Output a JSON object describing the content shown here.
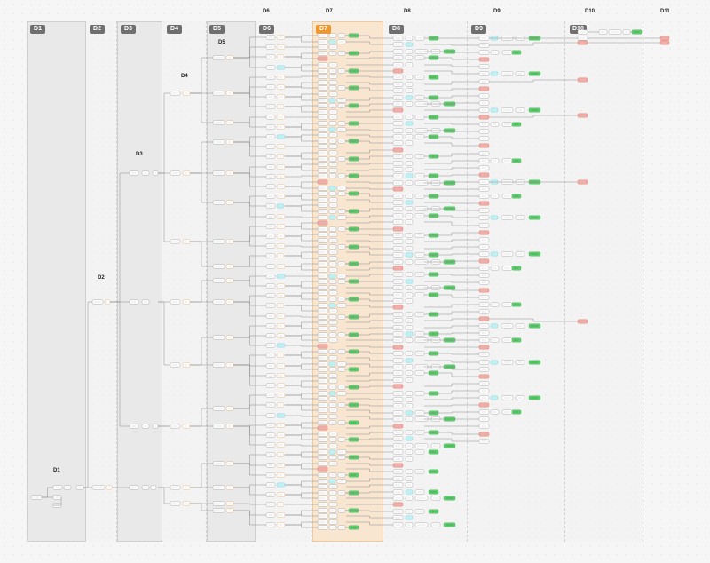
{
  "columns": {
    "d1": {
      "badge": "D1",
      "label": "D1"
    },
    "d2": {
      "badge": "D2",
      "label": "D2"
    },
    "d3": {
      "badge": "D3",
      "label": "D3"
    },
    "d4": {
      "badge": "D4",
      "label": "D4"
    },
    "d5": {
      "badge": "D5",
      "label": "D5"
    },
    "d6": {
      "badge": "D6",
      "label": "D6"
    },
    "d7": {
      "badge": "D7",
      "label": "D7"
    },
    "d8": {
      "badge": "D8",
      "label": "D8"
    },
    "d9": {
      "badge": "D9",
      "label": "D9"
    },
    "d10": {
      "badge": "D10",
      "label": "D10"
    },
    "d11": {
      "label": "D11"
    }
  },
  "colors": {
    "canvas": "#f6f6f6",
    "highlight_column": "#f9e6d1",
    "highlight_badge": "#f0962e",
    "node_white": "#ffffff",
    "node_orange_border": "#e6a96a",
    "node_cyan": "#bff0f3",
    "node_green": "#5fcf6e",
    "node_red": "#f3aaa2"
  }
}
